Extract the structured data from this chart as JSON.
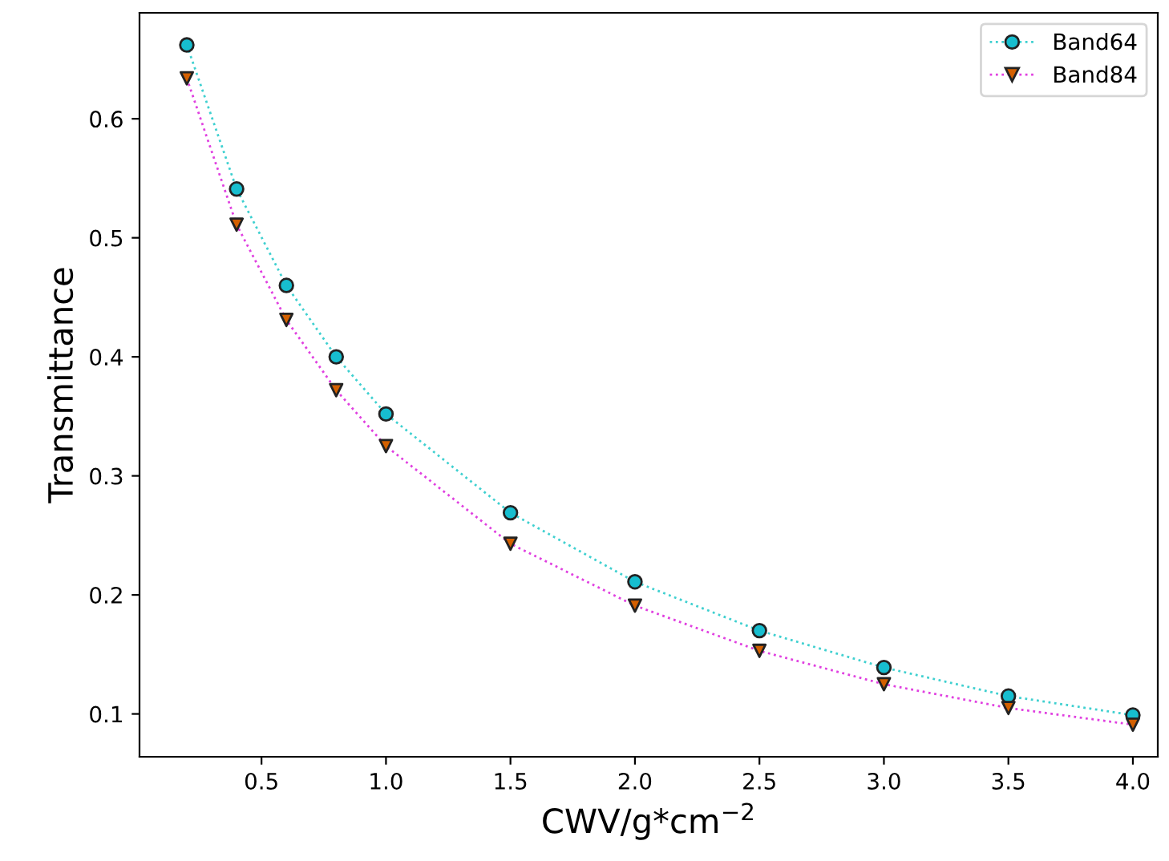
{
  "chart_data": {
    "type": "line",
    "xlabel": "CWV/g*cm$^{−2}$",
    "ylabel": "Transmittance",
    "x": [
      0.2,
      0.4,
      0.6,
      0.8,
      1.0,
      1.5,
      2.0,
      2.5,
      3.0,
      3.5,
      4.0
    ],
    "xlim": [
      0.01,
      4.1
    ],
    "xticks": [
      0.5,
      {
        "value": 1,
        "label": "1.0"
      },
      1.5,
      {
        "value": 2,
        "label": "2.0"
      },
      2.5,
      {
        "value": 3,
        "label": "3.0"
      },
      3.5,
      {
        "value": 4,
        "label": "4.0"
      }
    ],
    "ylim": [
      0.064,
      0.689
    ],
    "yticks": [
      0.1,
      0.2,
      0.3,
      0.4,
      0.5,
      0.6
    ],
    "grid": false,
    "legend": "top right",
    "line_style": "dotted",
    "series": [
      {
        "name": "Band64",
        "color": "#3fd0d0",
        "marker": "circle",
        "colors": [
          "#17becf",
          "#17becf",
          "#17becf",
          "#17becf",
          "#17becf",
          "#17becf",
          "#17becf",
          "#17becf",
          "#17becf",
          "#17becf",
          "#17becf"
        ],
        "values": [
          0.662,
          0.541,
          0.46,
          0.4,
          0.352,
          0.269,
          0.211,
          0.17,
          0.139,
          0.115,
          0.099
        ]
      },
      {
        "name": "Band84",
        "color": "#e040e0",
        "marker": "triangle",
        "colors": [
          "#d46000",
          "#d46000",
          "#d46000",
          "#d46000",
          "#d46000",
          "#d46000",
          "#d46000",
          "#d46000",
          "#d46000",
          "#d46000",
          "#d46000"
        ],
        "values": [
          0.634,
          0.511,
          0.431,
          0.372,
          0.325,
          0.243,
          0.191,
          0.153,
          0.125,
          0.105,
          0.091
        ]
      }
    ]
  }
}
